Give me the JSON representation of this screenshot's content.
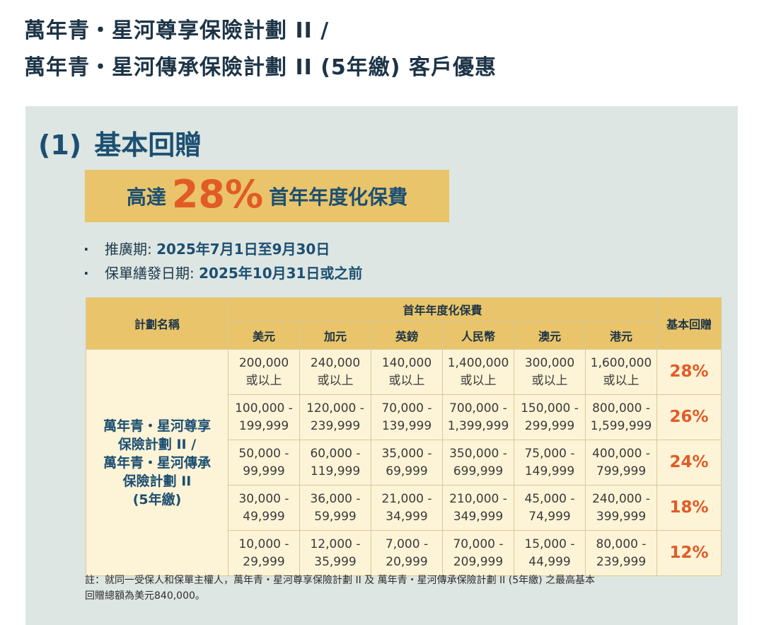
{
  "title": {
    "line1": "萬年青・星河尊享保險計劃 II /",
    "line2": "萬年青・星河傳承保險計劃 II (5年繳) 客戶優惠"
  },
  "section": {
    "number": "(1)",
    "heading": "基本回贈"
  },
  "banner": {
    "prefix": "高達",
    "highlight": "28%",
    "suffix": "首年年度化保費"
  },
  "bullets": [
    {
      "label": "推廣期: ",
      "value": "2025年7月1日至9月30日"
    },
    {
      "label": "保單繕發日期: ",
      "value": "2025年10月31日或之前"
    }
  ],
  "table": {
    "plan_header": "計劃名稱",
    "premium_header": "首年年度化保費",
    "rebate_header": "基本回贈",
    "currencies": [
      "美元",
      "加元",
      "英鎊",
      "人民幣",
      "澳元",
      "港元"
    ],
    "plan_lines": [
      "萬年青・星河尊享",
      "保險計劃 II /",
      "萬年青・星河傳承",
      "保險計劃 II",
      "(5年繳)"
    ],
    "rows": [
      {
        "cells": [
          [
            "200,000",
            "或以上"
          ],
          [
            "240,000",
            "或以上"
          ],
          [
            "140,000",
            "或以上"
          ],
          [
            "1,400,000",
            "或以上"
          ],
          [
            "300,000",
            "或以上"
          ],
          [
            "1,600,000",
            "或以上"
          ]
        ],
        "rate": "28%"
      },
      {
        "cells": [
          [
            "100,000 -",
            "199,999"
          ],
          [
            "120,000 -",
            "239,999"
          ],
          [
            "70,000 -",
            "139,999"
          ],
          [
            "700,000 -",
            "1,399,999"
          ],
          [
            "150,000 -",
            "299,999"
          ],
          [
            "800,000 -",
            "1,599,999"
          ]
        ],
        "rate": "26%"
      },
      {
        "cells": [
          [
            "50,000 -",
            "99,999"
          ],
          [
            "60,000 -",
            "119,999"
          ],
          [
            "35,000 -",
            "69,999"
          ],
          [
            "350,000 -",
            "699,999"
          ],
          [
            "75,000 -",
            "149,999"
          ],
          [
            "400,000 -",
            "799,999"
          ]
        ],
        "rate": "24%"
      },
      {
        "cells": [
          [
            "30,000 -",
            "49,999"
          ],
          [
            "36,000 -",
            "59,999"
          ],
          [
            "21,000 -",
            "34,999"
          ],
          [
            "210,000 -",
            "349,999"
          ],
          [
            "45,000 -",
            "74,999"
          ],
          [
            "240,000 -",
            "399,999"
          ]
        ],
        "rate": "18%"
      },
      {
        "cells": [
          [
            "10,000 -",
            "29,999"
          ],
          [
            "12,000 -",
            "35,999"
          ],
          [
            "7,000 -",
            "20,999"
          ],
          [
            "70,000 -",
            "209,999"
          ],
          [
            "15,000 -",
            "44,999"
          ],
          [
            "80,000 -",
            "239,999"
          ]
        ],
        "rate": "12%"
      }
    ]
  },
  "footnote": {
    "line1": "註：就同一受保人和保單主權人，萬年青・星河尊享保險計劃 II 及 萬年青・星河傳承保險計劃 II (5年繳) 之最高基本",
    "line2": "回贈總額為美元840,000。"
  },
  "colors": {
    "panel_bg": "#dde6e2",
    "banner_bg": "#e9c46a",
    "accent_orange": "#e25b27",
    "heading_blue": "#1c4f72",
    "table_body_bg": "#fdf3d6"
  }
}
